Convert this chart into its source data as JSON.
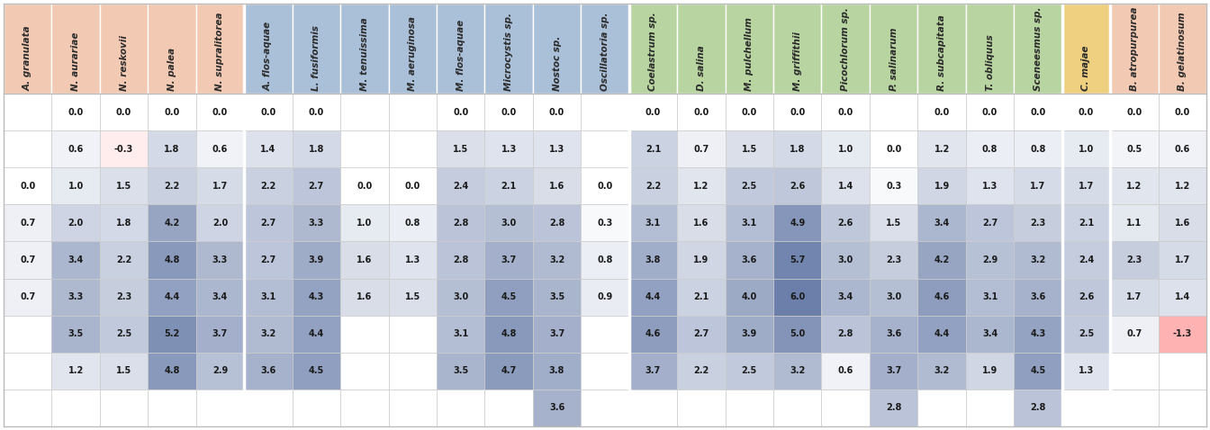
{
  "columns": [
    "A. granulata",
    "N. aurariae",
    "N. reskovii",
    "N. palea",
    "N. supralitorea",
    "A. flos-aquae",
    "L. fusiformis",
    "M. tenuissima",
    "M. aeruginosa",
    "M. flos-aquae",
    "Microcystis sp.",
    "Nostoc sp.",
    "Oscillatoria sp.",
    "Coelastrum sp.",
    "D. salina",
    "M. pulchellum",
    "M. griffithii",
    "Picochlorum sp.",
    "P. salinarum",
    "R. subcapitata",
    "T. obliquus",
    "Sceneesmus sp.",
    "C. majae",
    "B. atropurpurea",
    "B. gelatinosum"
  ],
  "col_groups": [
    0,
    0,
    0,
    0,
    0,
    1,
    1,
    1,
    1,
    1,
    1,
    1,
    1,
    2,
    2,
    2,
    2,
    2,
    2,
    2,
    2,
    2,
    3,
    4,
    4
  ],
  "group_bg_colors": {
    "0": "#F2C9B3",
    "1": "#AABFD8",
    "2": "#B8D4A0",
    "3": "#EED080",
    "4": "#F2C9B3"
  },
  "rows": [
    [
      null,
      0.0,
      0.0,
      0.0,
      0.0,
      0.0,
      0.0,
      null,
      null,
      0.0,
      0.0,
      0.0,
      null,
      0.0,
      0.0,
      0.0,
      0.0,
      0.0,
      null,
      0.0,
      0.0,
      0.0,
      0.0,
      0.0,
      0.0
    ],
    [
      null,
      0.6,
      -0.3,
      1.8,
      0.6,
      1.4,
      1.8,
      null,
      null,
      1.5,
      1.3,
      1.3,
      null,
      2.1,
      0.7,
      1.5,
      1.8,
      1.0,
      0.0,
      1.2,
      0.8,
      0.8,
      1.0,
      0.5,
      0.6
    ],
    [
      0.0,
      1.0,
      1.5,
      2.2,
      1.7,
      2.2,
      2.7,
      0.0,
      0.0,
      2.4,
      2.1,
      1.6,
      0.0,
      2.2,
      1.2,
      2.5,
      2.6,
      1.4,
      0.3,
      1.9,
      1.3,
      1.7,
      1.7,
      1.2,
      1.2
    ],
    [
      0.7,
      2.0,
      1.8,
      4.2,
      2.0,
      2.7,
      3.3,
      1.0,
      0.8,
      2.8,
      3.0,
      2.8,
      0.3,
      3.1,
      1.6,
      3.1,
      4.9,
      2.6,
      1.5,
      3.4,
      2.7,
      2.3,
      2.1,
      1.1,
      1.6
    ],
    [
      0.7,
      3.4,
      2.2,
      4.8,
      3.3,
      2.7,
      3.9,
      1.6,
      1.3,
      2.8,
      3.7,
      3.2,
      0.8,
      3.8,
      1.9,
      3.6,
      5.7,
      3.0,
      2.3,
      4.2,
      2.9,
      3.2,
      2.4,
      2.3,
      1.7
    ],
    [
      0.7,
      3.3,
      2.3,
      4.4,
      3.4,
      3.1,
      4.3,
      1.6,
      1.5,
      3.0,
      4.5,
      3.5,
      0.9,
      4.4,
      2.1,
      4.0,
      6.0,
      3.4,
      3.0,
      4.6,
      3.1,
      3.6,
      2.6,
      1.7,
      1.4
    ],
    [
      null,
      3.5,
      2.5,
      5.2,
      3.7,
      3.2,
      4.4,
      null,
      null,
      3.1,
      4.8,
      3.7,
      null,
      4.6,
      2.7,
      3.9,
      5.0,
      2.8,
      3.6,
      4.4,
      3.4,
      4.3,
      2.5,
      0.7,
      -1.3
    ],
    [
      null,
      1.2,
      1.5,
      4.8,
      2.9,
      3.6,
      4.5,
      null,
      null,
      3.5,
      4.7,
      3.8,
      null,
      3.7,
      2.2,
      2.5,
      3.2,
      0.6,
      3.7,
      3.2,
      1.9,
      4.5,
      1.3,
      null,
      null
    ],
    [
      null,
      null,
      null,
      null,
      null,
      null,
      null,
      null,
      null,
      null,
      null,
      3.6,
      null,
      null,
      null,
      null,
      null,
      null,
      2.8,
      null,
      null,
      2.8,
      null,
      null,
      null
    ]
  ],
  "fig_width": 13.44,
  "fig_height": 4.78,
  "font_size": 7.0,
  "header_font_size": 7.5,
  "value_max": 6.0,
  "cell_border_color": "#CCCCCC",
  "cell_border_lw": 0.5
}
